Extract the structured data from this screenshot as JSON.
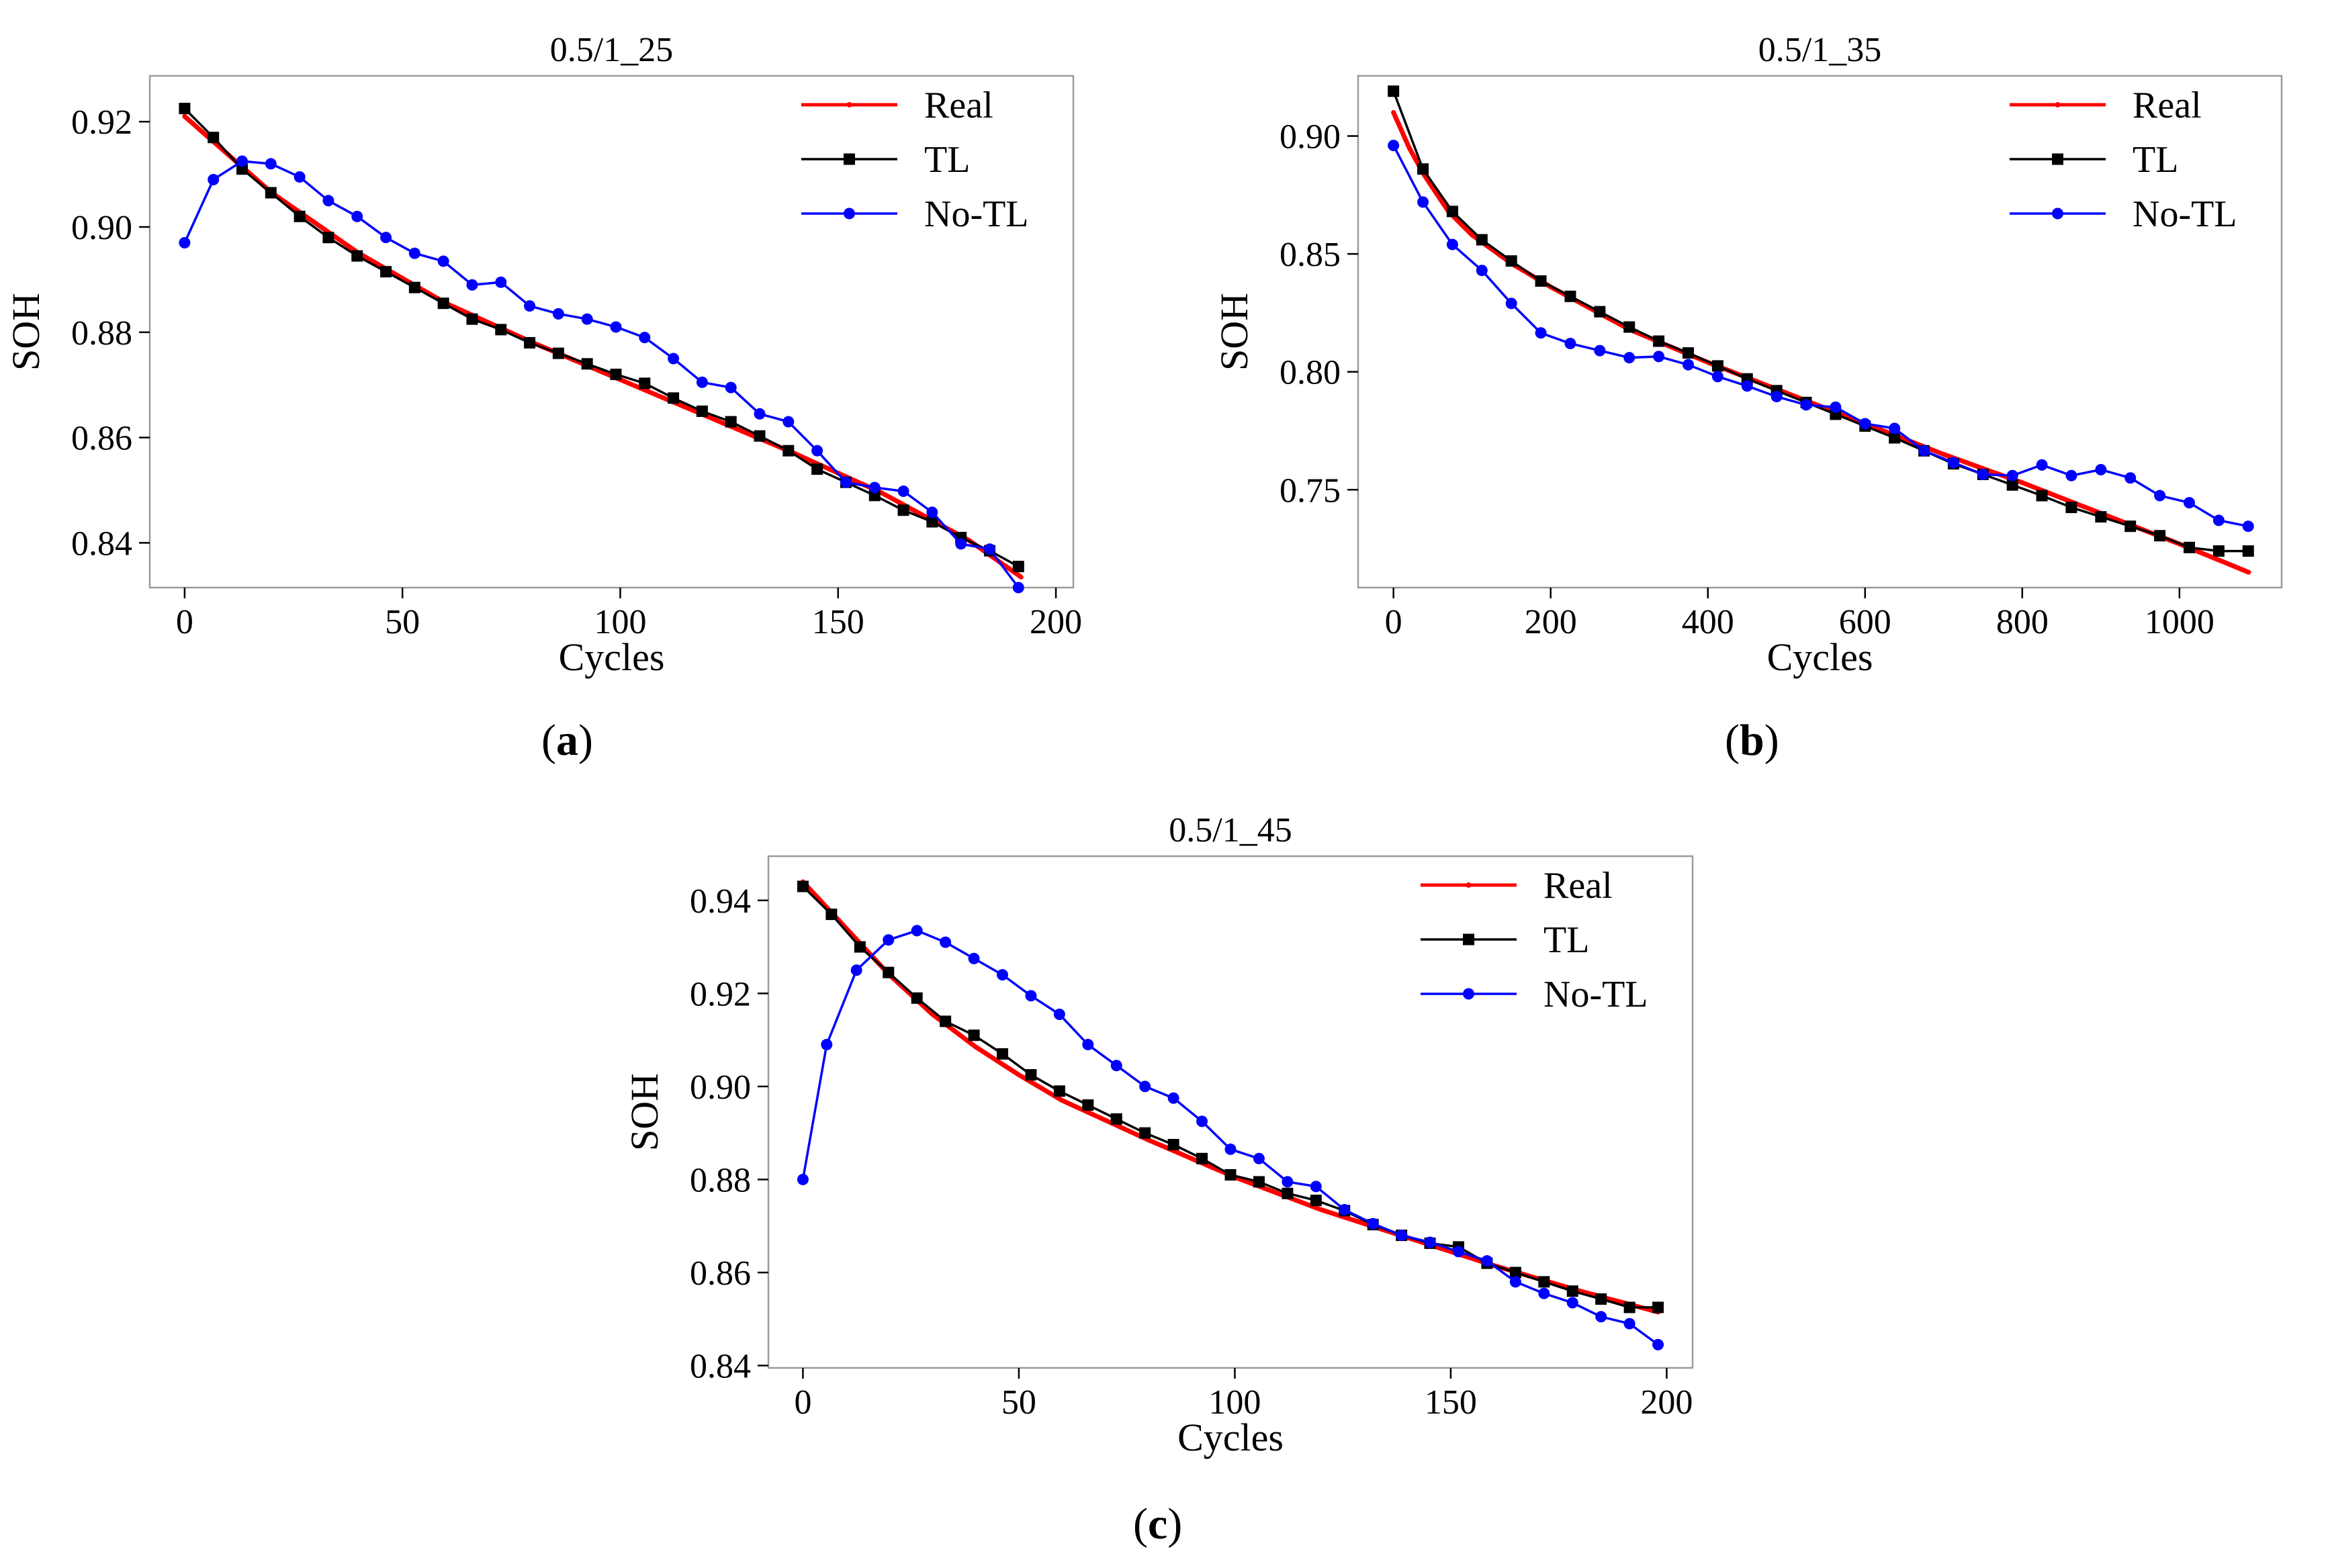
{
  "figure": {
    "panel_labels": [
      "a",
      "b",
      "c"
    ]
  },
  "chart_data": [
    {
      "type": "line",
      "title": "0.5/1_25",
      "xlabel": "Cycles",
      "ylabel": "SOH",
      "xlim": [
        -8,
        204
      ],
      "ylim": [
        0.8315,
        0.9287
      ],
      "xticks": [
        0,
        50,
        100,
        150,
        200
      ],
      "xtick_labels": [
        "0",
        "50",
        "100",
        "150",
        "200"
      ],
      "yticks": [
        0.84,
        0.86,
        0.88,
        0.9,
        0.92
      ],
      "ytick_labels": [
        "0.84",
        "0.86",
        "0.88",
        "0.90",
        "0.92"
      ],
      "legend_position": "top-right",
      "series": [
        {
          "name": "Real",
          "color": "#ff0000",
          "marker": "dot",
          "dense": true,
          "x": [
            0,
            20,
            40,
            60,
            80,
            100,
            120,
            140,
            160,
            180,
            192
          ],
          "y": [
            0.921,
            0.9065,
            0.895,
            0.8855,
            0.878,
            0.871,
            0.864,
            0.857,
            0.8495,
            0.8405,
            0.8335
          ]
        },
        {
          "name": "TL",
          "color": "#000000",
          "marker": "square",
          "dense": false,
          "x": [
            0,
            6.6,
            13.2,
            19.8,
            26.4,
            33,
            39.6,
            46.2,
            52.8,
            59.4,
            66,
            72.6,
            79.2,
            85.8,
            92.4,
            99,
            105.6,
            112.2,
            118.8,
            125.4,
            132,
            138.6,
            145.2,
            151.8,
            158.4,
            165,
            171.6,
            178.2,
            184.8,
            191.4
          ],
          "y": [
            0.9225,
            0.917,
            0.911,
            0.9065,
            0.902,
            0.898,
            0.8945,
            0.8915,
            0.8885,
            0.8855,
            0.8825,
            0.8805,
            0.878,
            0.876,
            0.874,
            0.872,
            0.8703,
            0.8675,
            0.865,
            0.863,
            0.8603,
            0.8575,
            0.854,
            0.8515,
            0.849,
            0.8462,
            0.844,
            0.841,
            0.8385,
            0.8355
          ]
        },
        {
          "name": "No-TL",
          "color": "#0000ff",
          "marker": "circle",
          "dense": false,
          "x": [
            0,
            6.6,
            13.2,
            19.8,
            26.4,
            33,
            39.6,
            46.2,
            52.8,
            59.4,
            66,
            72.6,
            79.2,
            85.8,
            92.4,
            99,
            105.6,
            112.2,
            118.8,
            125.4,
            132,
            138.6,
            145.2,
            151.8,
            158.4,
            165,
            171.6,
            178.2,
            184.8,
            191.4
          ],
          "y": [
            0.897,
            0.909,
            0.9125,
            0.912,
            0.9095,
            0.905,
            0.902,
            0.898,
            0.895,
            0.8935,
            0.889,
            0.8895,
            0.885,
            0.8835,
            0.8825,
            0.881,
            0.879,
            0.875,
            0.8705,
            0.8695,
            0.8645,
            0.863,
            0.8575,
            0.8515,
            0.8505,
            0.8498,
            0.8458,
            0.8398,
            0.8388,
            0.8315
          ]
        }
      ]
    },
    {
      "type": "line",
      "title": "0.5/1_35",
      "xlabel": "Cycles",
      "ylabel": "SOH",
      "xlim": [
        -45,
        1130
      ],
      "ylim": [
        0.7085,
        0.9255
      ],
      "xticks": [
        0,
        200,
        400,
        600,
        800,
        1000
      ],
      "xtick_labels": [
        "0",
        "200",
        "400",
        "600",
        "800",
        "1000"
      ],
      "yticks": [
        0.75,
        0.8,
        0.85,
        0.9
      ],
      "ytick_labels": [
        "0.75",
        "0.80",
        "0.85",
        "0.90"
      ],
      "legend_position": "top-right",
      "series": [
        {
          "name": "Real",
          "color": "#ff0000",
          "marker": "dot",
          "dense": true,
          "x": [
            0,
            20,
            40,
            70,
            100,
            150,
            200,
            300,
            400,
            500,
            600,
            700,
            800,
            900,
            1000,
            1088
          ],
          "y": [
            0.91,
            0.895,
            0.883,
            0.868,
            0.858,
            0.846,
            0.836,
            0.818,
            0.804,
            0.791,
            0.778,
            0.765,
            0.753,
            0.74,
            0.727,
            0.715
          ]
        },
        {
          "name": "TL",
          "color": "#000000",
          "marker": "square",
          "dense": false,
          "x": [
            0,
            37.5,
            75,
            112.5,
            150,
            187.5,
            225,
            262.5,
            300,
            337.5,
            375,
            412.5,
            450,
            487.5,
            525,
            562.5,
            600,
            637.5,
            675,
            712.5,
            750,
            787.5,
            825,
            862.5,
            900,
            937.5,
            975,
            1012.5,
            1050,
            1087.5
          ],
          "y": [
            0.919,
            0.886,
            0.868,
            0.856,
            0.847,
            0.8385,
            0.832,
            0.8255,
            0.819,
            0.813,
            0.808,
            0.8025,
            0.797,
            0.792,
            0.787,
            0.782,
            0.777,
            0.772,
            0.7665,
            0.761,
            0.7565,
            0.752,
            0.7475,
            0.7425,
            0.7385,
            0.7345,
            0.7305,
            0.7255,
            0.724,
            0.724
          ]
        },
        {
          "name": "No-TL",
          "color": "#0000ff",
          "marker": "circle",
          "dense": false,
          "x": [
            0,
            37.5,
            75,
            112.5,
            150,
            187.5,
            225,
            262.5,
            300,
            337.5,
            375,
            412.5,
            450,
            487.5,
            525,
            562.5,
            600,
            637.5,
            675,
            712.5,
            750,
            787.5,
            825,
            862.5,
            900,
            937.5,
            975,
            1012.5,
            1050,
            1087.5
          ],
          "y": [
            0.896,
            0.872,
            0.854,
            0.843,
            0.829,
            0.8165,
            0.812,
            0.809,
            0.806,
            0.8065,
            0.803,
            0.798,
            0.794,
            0.7895,
            0.786,
            0.785,
            0.778,
            0.776,
            0.7665,
            0.7615,
            0.7565,
            0.756,
            0.7605,
            0.756,
            0.7585,
            0.755,
            0.7475,
            0.7445,
            0.737,
            0.7345
          ]
        }
      ]
    },
    {
      "type": "line",
      "title": "0.5/1_45",
      "xlabel": "Cycles",
      "ylabel": "SOH",
      "xlim": [
        -8,
        206
      ],
      "ylim": [
        0.8395,
        0.9495
      ],
      "xticks": [
        0,
        50,
        100,
        150,
        200
      ],
      "xtick_labels": [
        "0",
        "50",
        "100",
        "150",
        "200"
      ],
      "yticks": [
        0.84,
        0.86,
        0.88,
        0.9,
        0.92,
        0.94
      ],
      "ytick_labels": [
        "0.84",
        "0.86",
        "0.88",
        "0.90",
        "0.92",
        "0.94"
      ],
      "legend_position": "top-right",
      "series": [
        {
          "name": "Real",
          "color": "#ff0000",
          "marker": "dot",
          "dense": true,
          "x": [
            0,
            10,
            20,
            30,
            40,
            50,
            60,
            80,
            100,
            120,
            140,
            160,
            180,
            198
          ],
          "y": [
            0.944,
            0.934,
            0.924,
            0.9155,
            0.9085,
            0.9025,
            0.897,
            0.8885,
            0.8805,
            0.8735,
            0.8675,
            0.8615,
            0.856,
            0.8515
          ]
        },
        {
          "name": "TL",
          "color": "#000000",
          "marker": "square",
          "dense": false,
          "x": [
            0,
            6.6,
            13.2,
            19.8,
            26.4,
            33,
            39.6,
            46.2,
            52.8,
            59.4,
            66,
            72.6,
            79.2,
            85.8,
            92.4,
            99,
            105.6,
            112.2,
            118.8,
            125.4,
            132,
            138.6,
            145.2,
            151.8,
            158.4,
            165,
            171.6,
            178.2,
            184.8,
            191.4,
            198
          ],
          "y": [
            0.943,
            0.937,
            0.93,
            0.9245,
            0.919,
            0.914,
            0.911,
            0.907,
            0.9025,
            0.899,
            0.896,
            0.893,
            0.89,
            0.8875,
            0.8845,
            0.881,
            0.8795,
            0.877,
            0.8755,
            0.8733,
            0.8703,
            0.868,
            0.8663,
            0.8655,
            0.862,
            0.86,
            0.858,
            0.856,
            0.8543,
            0.8525,
            0.8525
          ]
        },
        {
          "name": "No-TL",
          "color": "#0000ff",
          "marker": "circle",
          "dense": false,
          "x": [
            0,
            5.5,
            12.4,
            19.8,
            26.4,
            33,
            39.6,
            46.2,
            52.8,
            59.4,
            66,
            72.6,
            79.2,
            85.8,
            92.4,
            99,
            105.6,
            112.2,
            118.8,
            125.4,
            132,
            138.6,
            145.2,
            151.8,
            158.4,
            165,
            171.6,
            178.2,
            184.8,
            191.4,
            198
          ],
          "y": [
            0.88,
            0.909,
            0.925,
            0.9315,
            0.9335,
            0.931,
            0.9275,
            0.924,
            0.9195,
            0.9155,
            0.909,
            0.9045,
            0.9,
            0.8975,
            0.8925,
            0.8865,
            0.8845,
            0.8795,
            0.8785,
            0.8735,
            0.8705,
            0.868,
            0.8665,
            0.8645,
            0.8625,
            0.858,
            0.8555,
            0.8535,
            0.8505,
            0.849,
            0.8445
          ]
        }
      ]
    }
  ]
}
